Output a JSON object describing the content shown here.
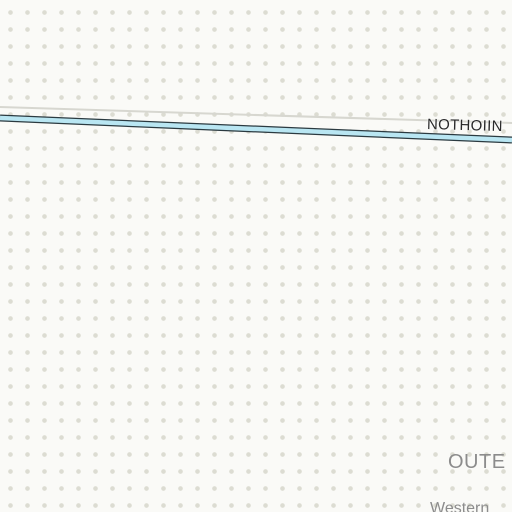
{
  "map": {
    "colors": {
      "background": "#fafaf7",
      "dot_pattern": "#dcdcd2",
      "road_fill": "#b9e6f2",
      "road_casing": "#2b3a40",
      "secondary_line": "#d7d7d0",
      "label_dark": "#2a2a2a",
      "label_grey": "#8c8c8c"
    },
    "labels": {
      "road": "NOTHOIIN",
      "area": "OUTE",
      "place": "Western"
    }
  }
}
